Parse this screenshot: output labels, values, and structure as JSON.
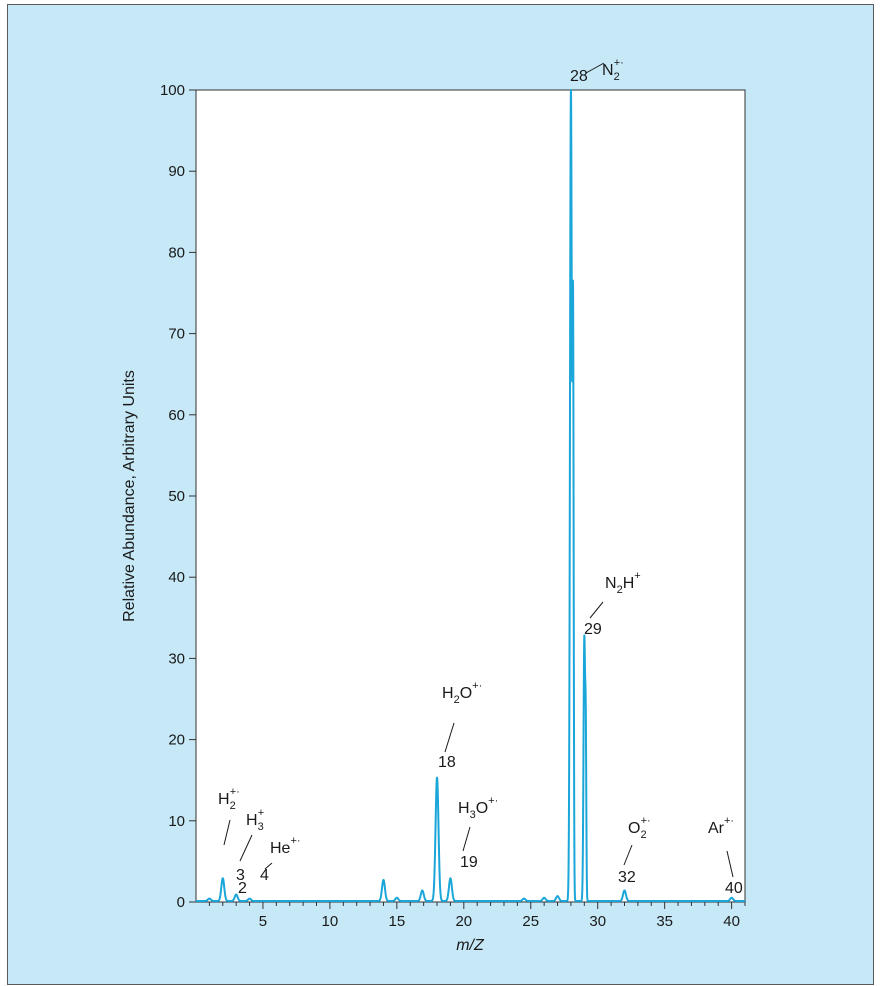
{
  "chart_data": {
    "type": "line",
    "xlabel": "m/Z",
    "ylabel": "Relative Abundance, Arbitrary Units",
    "xlim": [
      0,
      41
    ],
    "ylim": [
      0,
      100
    ],
    "x_ticks": [
      5,
      10,
      15,
      20,
      25,
      30,
      35,
      40
    ],
    "y_ticks": [
      0,
      10,
      20,
      30,
      40,
      50,
      60,
      70,
      80,
      90,
      100
    ],
    "grid": false,
    "line_color": "#1aa6d8",
    "series": [
      {
        "peaks": [
          {
            "mz": 1.0,
            "abundance": 0.3
          },
          {
            "mz": 2,
            "abundance": 2.8
          },
          {
            "mz": 3,
            "abundance": 0.8
          },
          {
            "mz": 4,
            "abundance": 0.3
          },
          {
            "mz": 14,
            "abundance": 2.6
          },
          {
            "mz": 15,
            "abundance": 0.4
          },
          {
            "mz": 16.9,
            "abundance": 1.3
          },
          {
            "mz": 18,
            "abundance": 15.2
          },
          {
            "mz": 19,
            "abundance": 2.8
          },
          {
            "mz": 24.5,
            "abundance": 0.3
          },
          {
            "mz": 26,
            "abundance": 0.4
          },
          {
            "mz": 27,
            "abundance": 0.6
          },
          {
            "mz": 28,
            "abundance": 100
          },
          {
            "mz": 29,
            "abundance": 32.3
          },
          {
            "mz": 32,
            "abundance": 1.3
          },
          {
            "mz": 40,
            "abundance": 0.4
          }
        ]
      }
    ],
    "annotations": [
      {
        "mz": "2",
        "ion": {
          "base": "H",
          "sub": "2",
          "sup": "+·"
        }
      },
      {
        "mz": "3",
        "ion": {
          "base": "H",
          "sub": "3",
          "sup": "+"
        }
      },
      {
        "mz": "4",
        "ion": {
          "base": "He",
          "sub": "",
          "sup": "+·"
        }
      },
      {
        "mz": "18",
        "ion": {
          "base": "H",
          "sub": "2",
          "tail": "O",
          "sup": "+·"
        }
      },
      {
        "mz": "19",
        "ion": {
          "base": "H",
          "sub": "3",
          "tail": "O",
          "sup": "+·"
        }
      },
      {
        "mz": "28",
        "ion": {
          "base": "N",
          "sub": "2",
          "sup": "+·"
        }
      },
      {
        "mz": "29",
        "ion": {
          "base": "N",
          "sub": "2",
          "tail": "H",
          "sup": "+"
        }
      },
      {
        "mz": "32",
        "ion": {
          "base": "O",
          "sub": "2",
          "sup": "+·"
        }
      },
      {
        "mz": "40",
        "ion": {
          "base": "Ar",
          "sub": "",
          "sup": "+·"
        }
      }
    ]
  }
}
